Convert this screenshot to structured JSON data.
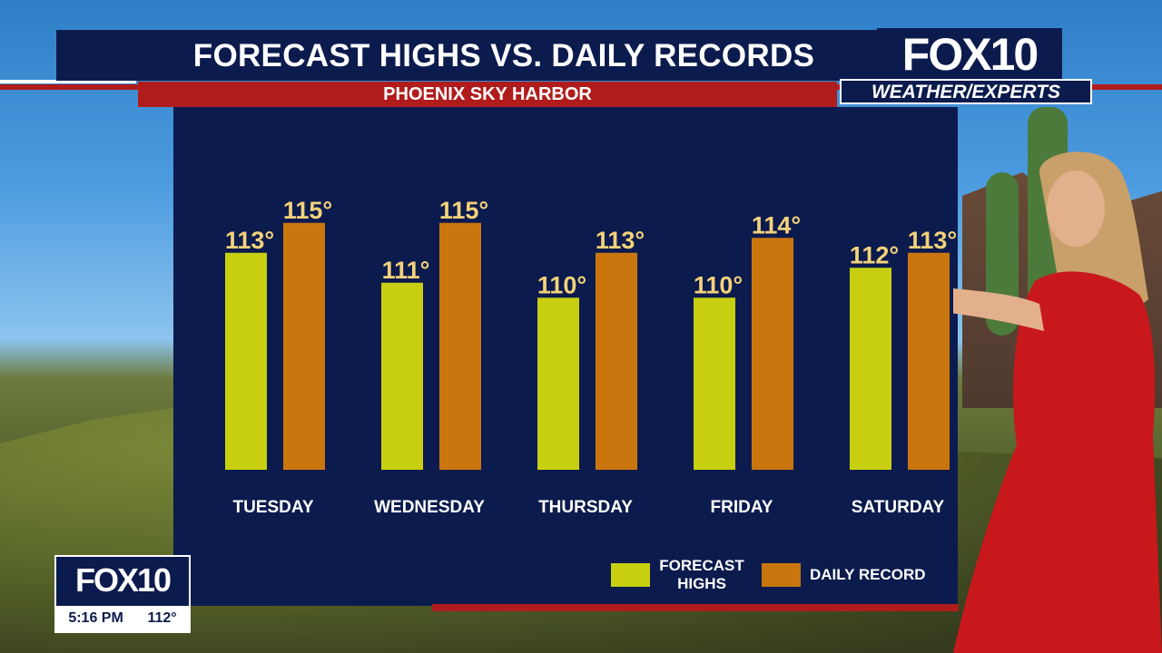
{
  "title": "FORECAST HIGHS VS. DAILY RECORDS",
  "subtitle": "PHOENIX SKY HARBOR",
  "logo": {
    "main": "FOX10",
    "sub": "WEATHER/EXPERTS"
  },
  "bug": {
    "logo": "FOX10",
    "time": "5:16 PM",
    "temp": "112°"
  },
  "colors": {
    "forecast": "#c8cf10",
    "record": "#c9760e",
    "panel": "#0c1b4d",
    "label": "#f3d27a",
    "accent": "#b01c1c"
  },
  "legend": {
    "forecast": "FORECAST HIGHS",
    "record": "DAILY RECORD"
  },
  "chart_data": {
    "type": "bar",
    "categories": [
      "TUESDAY",
      "WEDNESDAY",
      "THURSDAY",
      "FRIDAY",
      "SATURDAY"
    ],
    "series": [
      {
        "name": "FORECAST HIGHS",
        "values": [
          113,
          111,
          110,
          110,
          112
        ],
        "labels": [
          "113°",
          "111°",
          "110°",
          "110°",
          "112°"
        ]
      },
      {
        "name": "DAILY RECORD",
        "values": [
          115,
          115,
          113,
          114,
          113
        ],
        "labels": [
          "115°",
          "115°",
          "113°",
          "114°",
          "113°"
        ]
      }
    ],
    "grid": false,
    "legend_position": "bottom-right"
  }
}
